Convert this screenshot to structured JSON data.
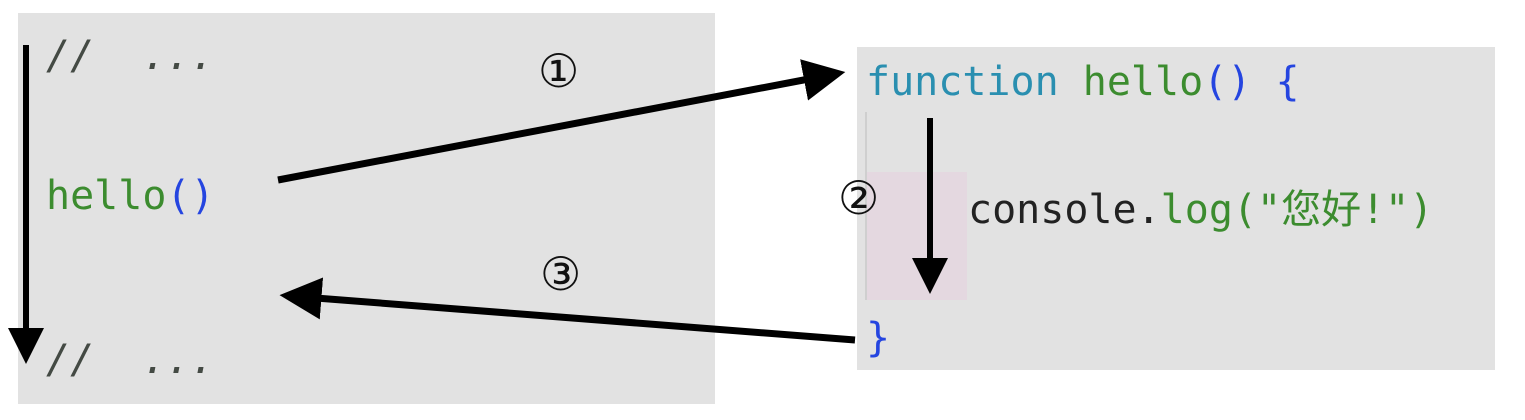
{
  "caller": {
    "comment_top": "//  ...",
    "call_name": "hello",
    "call_parens": "()",
    "comment_bottom": "//  ..."
  },
  "callee": {
    "keyword": "function",
    "fn_name": "hello",
    "parens": "()",
    "open_brace": "{",
    "console": "console",
    "dot": ".",
    "log": "log",
    "open_paren": "(",
    "string": "\"您好!\"",
    "close_paren": ")",
    "close_brace": "}"
  },
  "steps": [
    "①",
    "②",
    "③"
  ],
  "colors": {
    "panel": "#e2e2e2",
    "green": "#3c8c2f",
    "teal": "#2a8fb0",
    "blue": "#2545e0",
    "arrow": "#000000"
  }
}
